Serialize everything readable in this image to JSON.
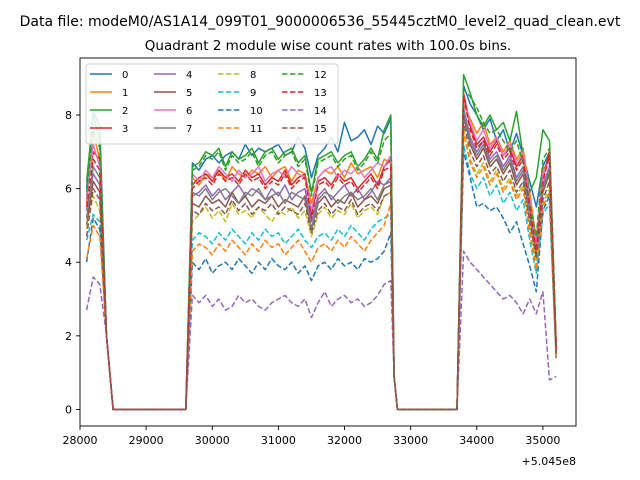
{
  "figure": {
    "suptitle": "Data file: modeM0/AS1A14_099T01_9000006536_55445cztM0_level2_quad_clean.evt",
    "offset_label": "+5.045e8"
  },
  "chart_data": {
    "type": "line",
    "title": "Quadrant 2 module wise count rates with 100.0s bins.",
    "xlabel": "",
    "ylabel": "",
    "x_offset": 504500000,
    "xlim": [
      28000,
      35500
    ],
    "ylim": [
      -0.45,
      9.55
    ],
    "xticks": [
      28000,
      29000,
      30000,
      31000,
      32000,
      33000,
      34000,
      35000
    ],
    "xtick_labels": [
      "28000",
      "29000",
      "30000",
      "31000",
      "32000",
      "33000",
      "34000",
      "35000"
    ],
    "yticks": [
      0,
      2,
      4,
      6,
      8
    ],
    "ytick_labels": [
      "0",
      "2",
      "4",
      "6",
      "8"
    ],
    "grid": false,
    "legend_position": "upper-left",
    "legend_columns": 4,
    "x_description": "Time bins every 100 s; zero counts in gaps 28500-29600 and 32800-33700",
    "series": [
      {
        "name": "0",
        "color": "#1f77b4",
        "dash": "solid",
        "segments": {
          "s1": [
            6.0,
            8.1,
            7.7
          ],
          "s2": [
            6.7,
            6.5,
            6.8,
            6.9,
            6.7,
            6.9,
            7.0,
            6.8,
            7.2,
            6.9,
            7.1,
            7.0,
            7.1,
            7.2,
            6.9,
            7.0,
            7.4,
            7.1,
            6.3,
            6.9,
            7.1,
            7.4,
            7.0,
            7.8,
            7.3,
            7.4,
            7.6,
            7.2,
            7.7,
            7.5,
            7.9
          ],
          "s3": [
            8.8,
            8.3,
            8.0,
            7.6,
            7.9,
            7.3,
            7.6,
            7.0,
            7.5,
            6.9,
            6.2,
            5.5,
            6.6,
            7.0
          ]
        }
      },
      {
        "name": "1",
        "color": "#ff7f0e",
        "dash": "solid",
        "segments": {
          "s1": [
            5.6,
            7.5,
            6.8
          ],
          "s2": [
            6.3,
            6.1,
            6.4,
            6.3,
            6.5,
            6.2,
            6.6,
            6.4,
            6.3,
            6.5,
            6.4,
            6.6,
            6.3,
            6.5,
            6.6,
            6.2,
            6.5,
            6.4,
            5.6,
            6.3,
            6.5,
            6.4,
            6.6,
            6.3,
            6.7,
            6.4,
            6.5,
            6.6,
            6.3,
            6.8,
            6.7
          ],
          "s3": [
            8.3,
            7.9,
            7.5,
            7.8,
            7.2,
            7.4,
            7.0,
            7.3,
            6.8,
            7.1,
            5.9,
            4.6,
            6.5,
            6.8
          ]
        }
      },
      {
        "name": "2",
        "color": "#2ca02c",
        "dash": "solid",
        "segments": {
          "s1": [
            6.2,
            8.0,
            7.3
          ],
          "s2": [
            6.6,
            6.7,
            7.0,
            6.9,
            7.1,
            6.6,
            7.0,
            6.8,
            6.9,
            7.1,
            6.7,
            7.0,
            7.1,
            6.8,
            7.0,
            7.1,
            6.7,
            6.9,
            5.9,
            6.8,
            6.9,
            7.0,
            6.7,
            6.9,
            7.0,
            6.6,
            6.8,
            7.1,
            6.8,
            7.6,
            8.0
          ],
          "s3": [
            9.1,
            8.6,
            8.0,
            7.7,
            8.0,
            7.6,
            7.8,
            7.3,
            8.1,
            6.9,
            5.9,
            6.3,
            7.6,
            7.3
          ]
        }
      },
      {
        "name": "3",
        "color": "#d62728",
        "dash": "solid",
        "segments": {
          "s1": [
            5.8,
            7.0,
            6.8
          ],
          "s2": [
            6.1,
            6.3,
            6.4,
            6.2,
            6.5,
            6.3,
            6.4,
            6.2,
            6.5,
            6.3,
            6.4,
            6.1,
            6.3,
            6.2,
            6.5,
            6.1,
            6.3,
            6.4,
            5.3,
            6.2,
            6.3,
            6.1,
            6.4,
            6.2,
            6.3,
            6.0,
            6.2,
            6.4,
            6.1,
            6.6,
            6.8
          ],
          "s3": [
            8.6,
            7.7,
            7.2,
            7.4,
            7.0,
            7.3,
            6.9,
            7.1,
            6.6,
            6.9,
            5.6,
            4.4,
            6.3,
            7.0
          ]
        }
      },
      {
        "name": "4",
        "color": "#9467bd",
        "dash": "solid",
        "segments": {
          "s1": [
            5.4,
            6.4,
            6.1
          ],
          "s2": [
            5.8,
            5.9,
            6.1,
            5.8,
            6.0,
            5.7,
            5.9,
            6.1,
            5.8,
            6.0,
            5.9,
            5.7,
            6.0,
            5.8,
            6.1,
            5.7,
            5.9,
            6.0,
            5.1,
            5.8,
            6.0,
            5.7,
            5.9,
            6.1,
            5.8,
            6.0,
            5.7,
            5.9,
            6.2,
            6.1,
            6.3
          ],
          "s3": [
            8.2,
            7.4,
            7.0,
            7.3,
            6.8,
            7.0,
            6.6,
            6.9,
            6.3,
            6.6,
            5.4,
            4.3,
            6.1,
            6.6
          ]
        }
      },
      {
        "name": "5",
        "color": "#8c564b",
        "dash": "solid",
        "segments": {
          "s1": [
            5.0,
            6.2,
            5.9
          ],
          "s2": [
            5.6,
            5.5,
            5.8,
            5.6,
            5.7,
            5.5,
            5.9,
            5.6,
            5.8,
            5.5,
            5.7,
            5.6,
            5.8,
            5.5,
            5.7,
            5.6,
            5.5,
            5.8,
            4.9,
            5.6,
            5.8,
            5.5,
            5.7,
            5.6,
            5.9,
            5.5,
            5.7,
            5.8,
            5.6,
            6.0,
            6.1
          ],
          "s3": [
            8.0,
            7.2,
            6.8,
            7.1,
            6.6,
            6.8,
            6.4,
            6.7,
            6.1,
            6.4,
            5.3,
            4.2,
            5.9,
            6.4
          ]
        }
      },
      {
        "name": "6",
        "color": "#e377c2",
        "dash": "solid",
        "segments": {
          "s1": [
            5.7,
            7.2,
            6.6
          ],
          "s2": [
            6.4,
            6.2,
            6.5,
            6.3,
            6.6,
            6.4,
            6.2,
            6.5,
            6.3,
            6.4,
            6.6,
            6.2,
            6.4,
            6.5,
            6.3,
            6.6,
            6.4,
            6.3,
            5.4,
            6.3,
            6.5,
            6.6,
            6.3,
            6.5,
            6.4,
            6.6,
            6.3,
            6.5,
            6.7,
            6.6,
            6.9
          ],
          "s3": [
            8.4,
            7.8,
            7.3,
            7.6,
            7.1,
            7.4,
            6.9,
            7.2,
            6.7,
            7.0,
            5.7,
            4.5,
            6.4,
            6.8
          ]
        }
      },
      {
        "name": "7",
        "color": "#7f7f7f",
        "dash": "solid",
        "segments": {
          "s1": [
            5.2,
            6.6,
            6.3
          ],
          "s2": [
            5.9,
            5.8,
            6.0,
            5.7,
            5.9,
            6.0,
            5.8,
            5.6,
            5.9,
            5.8,
            6.0,
            5.7,
            5.8,
            5.9,
            5.6,
            5.9,
            5.8,
            5.7,
            4.9,
            5.7,
            5.9,
            5.8,
            5.6,
            5.8,
            5.9,
            5.7,
            5.8,
            6.0,
            5.7,
            6.1,
            6.2
          ],
          "s3": [
            8.1,
            7.3,
            6.9,
            7.2,
            6.7,
            6.9,
            6.5,
            6.8,
            6.2,
            6.5,
            5.3,
            4.3,
            6.0,
            6.5
          ]
        }
      },
      {
        "name": "8",
        "color": "#bcbd22",
        "dash": "dashed",
        "segments": {
          "s1": [
            4.9,
            5.8,
            5.4
          ],
          "s2": [
            5.1,
            5.3,
            5.5,
            5.2,
            5.4,
            5.1,
            5.6,
            5.3,
            5.4,
            5.2,
            5.5,
            5.3,
            5.1,
            5.4,
            5.3,
            5.5,
            5.2,
            5.4,
            4.7,
            5.3,
            5.5,
            5.2,
            5.4,
            5.3,
            5.6,
            5.2,
            5.4,
            5.5,
            5.3,
            5.8,
            5.9
          ],
          "s3": [
            7.6,
            6.8,
            6.4,
            6.7,
            6.2,
            6.5,
            6.0,
            6.3,
            5.8,
            6.1,
            5.0,
            4.0,
            5.6,
            6.0
          ]
        }
      },
      {
        "name": "9",
        "color": "#17becf",
        "dash": "dashed",
        "segments": {
          "s1": [
            4.6,
            5.3,
            5.1
          ],
          "s2": [
            4.6,
            4.8,
            4.7,
            4.5,
            4.8,
            4.6,
            4.9,
            4.7,
            4.5,
            4.8,
            4.6,
            4.9,
            4.7,
            4.8,
            4.5,
            4.7,
            4.9,
            4.6,
            4.4,
            4.7,
            4.8,
            4.6,
            4.9,
            4.7,
            5.0,
            4.8,
            4.6,
            4.9,
            5.1,
            5.2,
            5.3
          ],
          "s3": [
            7.2,
            6.4,
            6.0,
            6.3,
            5.8,
            6.1,
            5.6,
            5.9,
            5.4,
            5.7,
            4.6,
            3.7,
            5.3,
            5.6
          ]
        }
      },
      {
        "name": "10",
        "color": "#1f77b4",
        "dash": "dashed",
        "segments": {
          "s1": [
            4.0,
            5.2,
            4.9
          ],
          "s2": [
            4.0,
            3.8,
            4.1,
            3.7,
            3.9,
            4.0,
            3.8,
            4.1,
            3.9,
            3.7,
            4.0,
            3.8,
            4.1,
            3.9,
            3.8,
            4.0,
            3.7,
            3.9,
            3.5,
            3.9,
            4.0,
            3.8,
            4.1,
            3.9,
            4.0,
            3.8,
            4.1,
            4.0,
            4.1,
            4.3,
            4.8
          ],
          "s3": [
            7.0,
            6.3,
            5.5,
            5.6,
            5.4,
            5.5,
            5.2,
            4.8,
            5.1,
            4.5,
            3.9,
            3.2,
            5.4,
            5.8
          ]
        }
      },
      {
        "name": "11",
        "color": "#ff7f0e",
        "dash": "dashed",
        "segments": {
          "s1": [
            4.1,
            5.0,
            4.7
          ],
          "s2": [
            4.3,
            4.5,
            4.4,
            4.2,
            4.5,
            4.3,
            4.6,
            4.4,
            4.2,
            4.5,
            4.3,
            4.6,
            4.4,
            4.5,
            4.2,
            4.4,
            4.6,
            4.3,
            4.0,
            4.4,
            4.5,
            4.3,
            4.6,
            4.4,
            4.7,
            4.5,
            4.3,
            4.6,
            4.8,
            5.0,
            5.6
          ],
          "s3": [
            7.5,
            6.7,
            6.3,
            6.6,
            6.1,
            6.4,
            5.9,
            6.2,
            5.7,
            6.0,
            4.8,
            3.8,
            5.5,
            5.9
          ]
        }
      },
      {
        "name": "12",
        "color": "#2ca02c",
        "dash": "dashed",
        "segments": {
          "s1": [
            5.9,
            7.6,
            7.1
          ],
          "s2": [
            6.5,
            6.6,
            6.9,
            6.8,
            7.0,
            6.5,
            6.9,
            6.7,
            6.8,
            7.0,
            6.6,
            6.9,
            7.0,
            6.7,
            6.9,
            7.0,
            6.6,
            6.8,
            5.8,
            6.7,
            6.8,
            6.9,
            6.6,
            6.8,
            6.9,
            6.5,
            6.7,
            7.0,
            6.7,
            7.3,
            7.5
          ],
          "s3": [
            8.7,
            8.5,
            8.2,
            7.8,
            7.5,
            7.6,
            7.3,
            7.0,
            7.3,
            6.7,
            5.6,
            4.7,
            6.8,
            7.1
          ]
        }
      },
      {
        "name": "13",
        "color": "#d62728",
        "dash": "dashed",
        "segments": {
          "s1": [
            5.5,
            6.8,
            6.5
          ],
          "s2": [
            6.0,
            6.2,
            6.3,
            6.1,
            6.4,
            6.2,
            6.3,
            6.1,
            6.4,
            6.2,
            6.3,
            6.0,
            6.2,
            6.1,
            6.4,
            6.0,
            6.2,
            6.3,
            5.2,
            6.1,
            6.2,
            6.0,
            6.3,
            6.1,
            6.2,
            5.9,
            6.1,
            6.3,
            6.0,
            6.5,
            6.6
          ],
          "s3": [
            8.5,
            7.6,
            7.1,
            7.3,
            6.9,
            7.2,
            6.8,
            7.0,
            6.5,
            6.8,
            5.5,
            4.3,
            6.2,
            6.9
          ]
        }
      },
      {
        "name": "14",
        "color": "#9467bd",
        "dash": "dashed",
        "segments": {
          "s1": [
            2.7,
            3.6,
            3.4
          ],
          "s2": [
            3.1,
            2.9,
            3.1,
            2.8,
            3.0,
            2.7,
            2.8,
            3.1,
            2.9,
            3.0,
            2.8,
            2.7,
            2.9,
            3.0,
            3.1,
            2.9,
            2.8,
            3.0,
            2.5,
            2.9,
            3.2,
            2.8,
            3.0,
            3.1,
            2.9,
            3.0,
            2.8,
            2.9,
            3.1,
            3.4,
            3.5
          ],
          "s3": [
            4.3,
            4.0,
            3.8,
            3.6,
            3.4,
            3.2,
            3.0,
            3.1,
            2.9,
            2.6,
            3.0,
            2.6,
            3.2,
            0.8
          ]
        }
      },
      {
        "name": "15",
        "color": "#8c564b",
        "dash": "dashed",
        "segments": {
          "s1": [
            4.7,
            6.0,
            5.7
          ],
          "s2": [
            5.4,
            5.3,
            5.6,
            5.4,
            5.5,
            5.3,
            5.7,
            5.4,
            5.6,
            5.3,
            5.5,
            5.4,
            5.6,
            5.3,
            5.5,
            5.4,
            5.3,
            5.6,
            4.8,
            5.4,
            5.6,
            5.3,
            5.5,
            5.4,
            5.7,
            5.3,
            5.5,
            5.6,
            5.4,
            5.8,
            5.9
          ],
          "s3": [
            7.8,
            7.0,
            6.6,
            6.9,
            6.4,
            6.6,
            6.2,
            6.5,
            5.9,
            6.2,
            5.1,
            4.1,
            5.7,
            6.2
          ]
        }
      }
    ]
  }
}
